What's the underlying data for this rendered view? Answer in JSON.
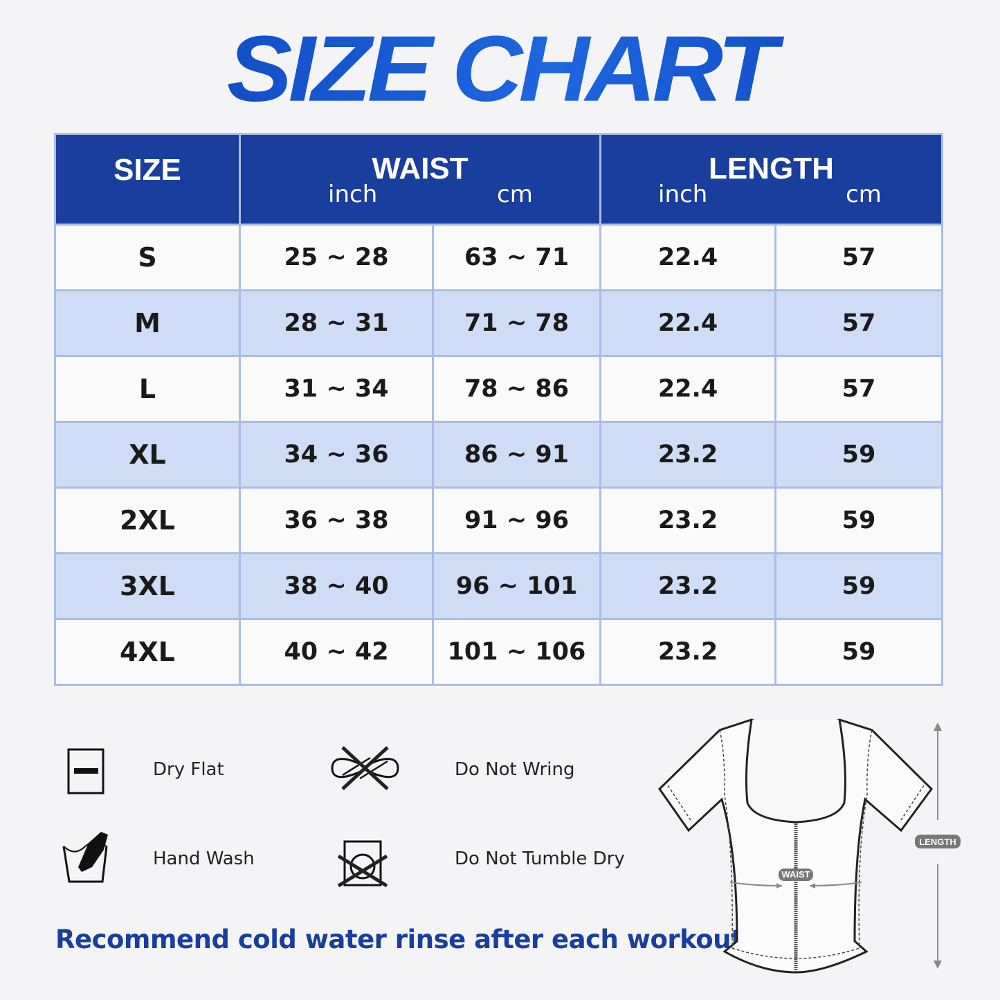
{
  "title": "SIZE CHART",
  "table": {
    "headers": {
      "size": "SIZE",
      "waist": "WAIST",
      "waist_inch": "inch",
      "waist_cm": "cm",
      "length": "LENGTH",
      "length_inch": "inch",
      "length_cm": "cm"
    },
    "rows": [
      [
        "S",
        "25 ~ 28",
        "63 ~ 71",
        "22.4",
        "57"
      ],
      [
        "M",
        "28 ~ 31",
        "71 ~ 78",
        "22.4",
        "57"
      ],
      [
        "L",
        "31 ~ 34",
        "78 ~ 86",
        "22.4",
        "57"
      ],
      [
        "XL",
        "34 ~ 36",
        "86 ~ 91",
        "23.2",
        "59"
      ],
      [
        "2XL",
        "36 ~ 38",
        "91 ~ 96",
        "23.2",
        "59"
      ],
      [
        "3XL",
        "38 ~ 40",
        "96 ~ 101",
        "23.2",
        "59"
      ],
      [
        "4XL",
        "40 ~ 42",
        "101 ~ 106",
        "23.2",
        "59"
      ]
    ]
  },
  "care": [
    {
      "icon": "dry-flat-icon",
      "label": "Dry Flat"
    },
    {
      "icon": "do-not-wring-icon",
      "label": "Do Not Wring"
    },
    {
      "icon": "hand-wash-icon",
      "label": "Hand Wash"
    },
    {
      "icon": "do-not-tumble-dry-icon",
      "label": "Do Not Tumble Dry"
    }
  ],
  "recommendation": "Recommend cold water rinse after each workout.",
  "diagram": {
    "waist_label": "WAIST",
    "length_label": "LENGTH"
  },
  "colors": {
    "header": "#1a3e9e",
    "stripe": "#cfdcf6",
    "title": "#0d47c4",
    "border": "#a9bde6"
  }
}
